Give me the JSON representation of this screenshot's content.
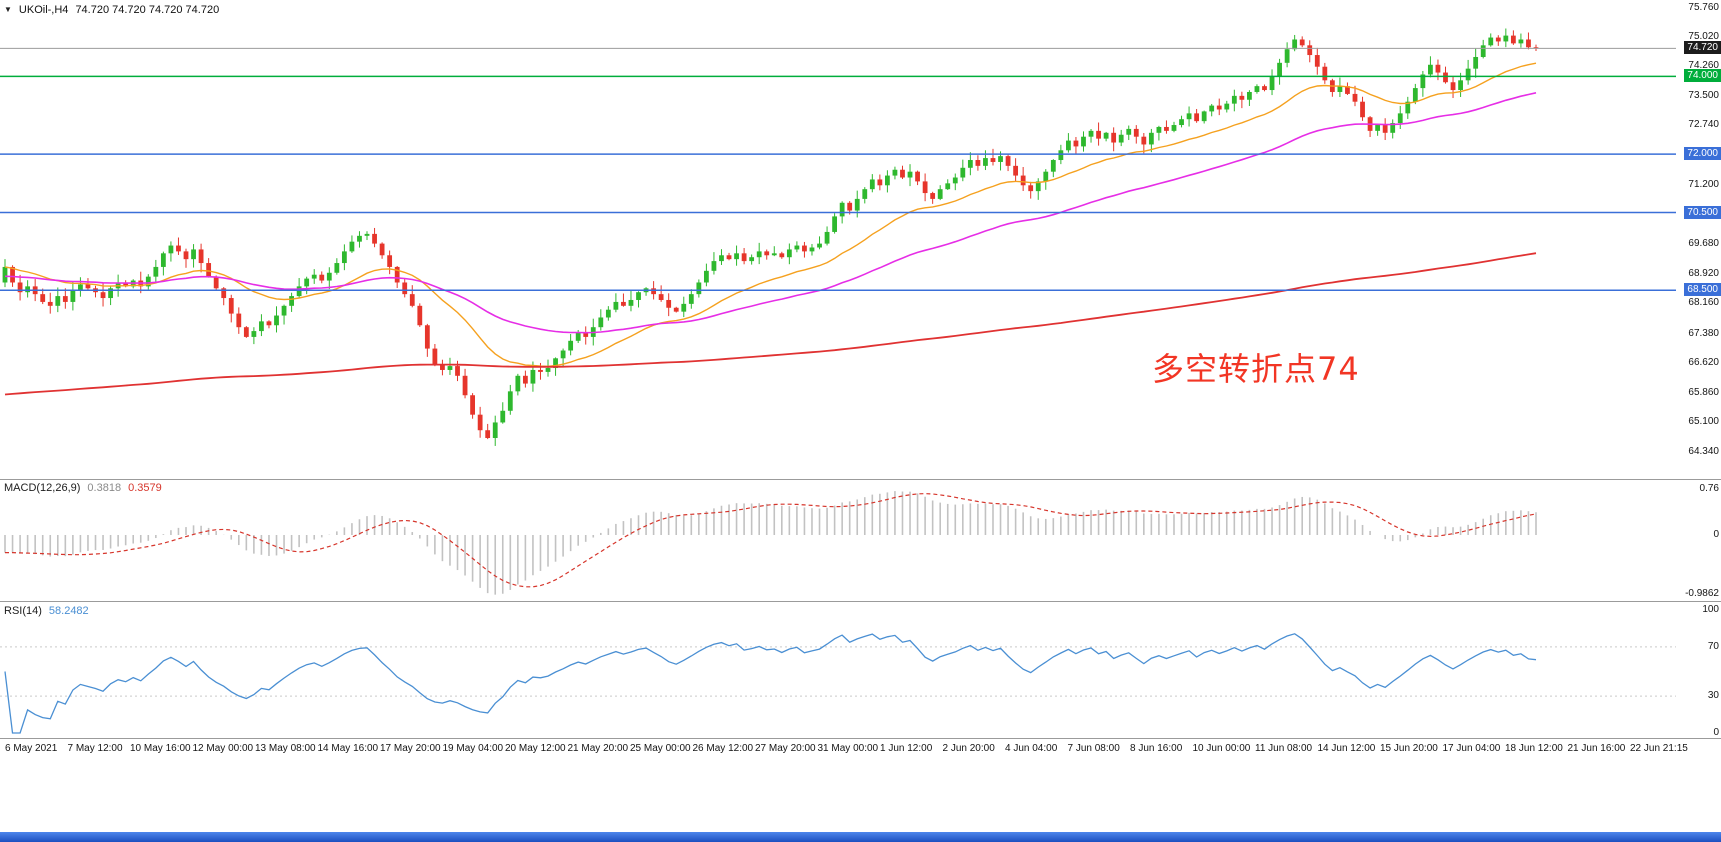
{
  "header": {
    "menu_icon": "▼",
    "symbol_timeframe": "UKOil-,H4",
    "ohlc_values": "74.720 74.720 74.720 74.720"
  },
  "colors": {
    "bull": "#2eb82e",
    "bear": "#e6352b",
    "separator": "#9b9b9b",
    "current_price_line": "#9c9c9c",
    "annotation_red": "#f23524",
    "taskbar_blue": "#2b62d9",
    "level_dash": "#c9c9c9"
  },
  "chart_data": {
    "type": "candlestick",
    "title": "UKOil-,H4",
    "timeframe": "H4",
    "ylim": [
      64.34,
      75.76
    ],
    "closes": [
      69.1,
      68.7,
      68.45,
      68.6,
      68.4,
      68.2,
      68.1,
      68.35,
      68.2,
      68.5,
      68.65,
      68.55,
      68.45,
      68.3,
      68.55,
      68.7,
      68.6,
      68.75,
      68.6,
      68.85,
      69.1,
      69.45,
      69.65,
      69.5,
      69.3,
      69.55,
      69.2,
      68.85,
      68.55,
      68.3,
      67.9,
      67.55,
      67.3,
      67.45,
      67.7,
      67.6,
      67.85,
      68.1,
      68.35,
      68.6,
      68.8,
      68.9,
      68.75,
      68.95,
      69.2,
      69.5,
      69.75,
      69.9,
      69.95,
      69.7,
      69.4,
      69.1,
      68.7,
      68.4,
      68.1,
      67.6,
      67.0,
      66.6,
      66.45,
      66.55,
      66.3,
      65.8,
      65.3,
      64.9,
      64.7,
      65.1,
      65.4,
      65.9,
      66.3,
      66.1,
      66.45,
      66.4,
      66.5,
      66.75,
      66.95,
      67.2,
      67.4,
      67.3,
      67.55,
      67.8,
      68.0,
      68.2,
      68.1,
      68.25,
      68.45,
      68.55,
      68.4,
      68.25,
      68.05,
      67.95,
      68.15,
      68.4,
      68.7,
      69.0,
      69.25,
      69.4,
      69.3,
      69.45,
      69.25,
      69.35,
      69.5,
      69.4,
      69.45,
      69.35,
      69.55,
      69.65,
      69.5,
      69.6,
      69.7,
      70.0,
      70.4,
      70.75,
      70.55,
      70.85,
      71.1,
      71.35,
      71.2,
      71.45,
      71.6,
      71.4,
      71.55,
      71.3,
      71.0,
      70.85,
      71.1,
      71.25,
      71.4,
      71.65,
      71.85,
      71.7,
      71.9,
      71.8,
      71.95,
      71.7,
      71.45,
      71.2,
      71.05,
      71.3,
      71.55,
      71.85,
      72.1,
      72.35,
      72.2,
      72.45,
      72.6,
      72.4,
      72.55,
      72.3,
      72.5,
      72.65,
      72.45,
      72.25,
      72.55,
      72.7,
      72.6,
      72.75,
      72.9,
      73.05,
      72.85,
      73.1,
      73.25,
      73.15,
      73.3,
      73.5,
      73.4,
      73.6,
      73.75,
      73.65,
      74.0,
      74.35,
      74.7,
      74.95,
      74.8,
      74.55,
      74.25,
      73.9,
      73.6,
      73.75,
      73.55,
      73.35,
      72.95,
      72.6,
      72.75,
      72.55,
      72.8,
      73.05,
      73.35,
      73.7,
      74.05,
      74.3,
      74.1,
      73.85,
      73.65,
      73.9,
      74.2,
      74.5,
      74.8,
      75.0,
      74.9,
      75.05,
      74.85,
      74.95,
      74.75,
      74.72
    ],
    "y_ticks": [
      {
        "label": "75.760",
        "value": 75.76
      },
      {
        "label": "75.020",
        "value": 75.02
      },
      {
        "label": "74.260",
        "value": 74.26
      },
      {
        "label": "73.500",
        "value": 73.5
      },
      {
        "label": "72.740",
        "value": 72.74
      },
      {
        "label": "71.200",
        "value": 71.2
      },
      {
        "label": "69.680",
        "value": 69.68
      },
      {
        "label": "68.920",
        "value": 68.92
      },
      {
        "label": "68.160",
        "value": 68.16
      },
      {
        "label": "67.380",
        "value": 67.38
      },
      {
        "label": "66.620",
        "value": 66.62
      },
      {
        "label": "65.860",
        "value": 65.86
      },
      {
        "label": "65.100",
        "value": 65.1
      },
      {
        "label": "64.340",
        "value": 64.34
      }
    ],
    "price_badges": [
      {
        "label": "74.720",
        "value": 74.72,
        "bg": "#1c1c1c"
      },
      {
        "label": "74.000",
        "value": 74.0,
        "bg": "#00ad3b"
      },
      {
        "label": "72.000",
        "value": 72.0,
        "bg": "#3a6fd8"
      },
      {
        "label": "70.500",
        "value": 70.5,
        "bg": "#3a6fd8"
      },
      {
        "label": "68.500",
        "value": 68.5,
        "bg": "#3a6fd8"
      }
    ],
    "hlines": [
      {
        "value": 74.0,
        "color": "#00ad3b"
      },
      {
        "value": 72.0,
        "color": "#3a6fd8"
      },
      {
        "value": 70.5,
        "color": "#3a6fd8"
      },
      {
        "value": 68.5,
        "color": "#3a6fd8"
      }
    ],
    "current_price": {
      "value": 74.72,
      "label": "74.720"
    },
    "overlays": [
      {
        "name": "ma-fast",
        "period": 21,
        "color": "#f5a11f",
        "width": 1.4
      },
      {
        "name": "ma-mid",
        "period": 55,
        "seed": 68.85,
        "color": "#e62ee6",
        "width": 1.6
      },
      {
        "name": "ma-slow",
        "period": 350,
        "seed": 65.8,
        "color": "#e03232",
        "width": 1.8
      }
    ],
    "annotation": {
      "text": "多空转折点74"
    },
    "indicators": {
      "macd": {
        "label": "MACD(12,26,9)",
        "value_main": "0.3818",
        "value_signal": "0.3579",
        "params": [
          12,
          26,
          9
        ],
        "ylim": [
          -1.05,
          0.85
        ],
        "y_ticks": [
          {
            "label": "0.76",
            "value": 0.76
          },
          {
            "label": "0",
            "value": 0
          },
          {
            "label": "-0.9862",
            "value": -0.9862
          }
        ],
        "hist_color": "#c2c2c2",
        "signal_color": "#d6352b"
      },
      "rsi": {
        "label": "RSI(14)",
        "value": "58.2482",
        "period": 14,
        "ylim": [
          0,
          100
        ],
        "levels": [
          70,
          30
        ],
        "y_ticks": [
          {
            "label": "100",
            "value": 100
          },
          {
            "label": "70",
            "value": 70
          },
          {
            "label": "30",
            "value": 30
          },
          {
            "label": "0",
            "value": 0
          }
        ],
        "line_color": "#4a8fd3"
      }
    },
    "x_labels": [
      "6 May 2021",
      "7 May 12:00",
      "10 May 16:00",
      "12 May 00:00",
      "13 May 08:00",
      "14 May 16:00",
      "17 May 20:00",
      "19 May 04:00",
      "20 May 12:00",
      "21 May 20:00",
      "25 May 00:00",
      "26 May 12:00",
      "27 May 20:00",
      "31 May 00:00",
      "1 Jun 12:00",
      "2 Jun 20:00",
      "4 Jun 04:00",
      "7 Jun 08:00",
      "8 Jun 16:00",
      "10 Jun 00:00",
      "11 Jun 08:00",
      "14 Jun 12:00",
      "15 Jun 20:00",
      "17 Jun 04:00",
      "18 Jun 12:00",
      "21 Jun 16:00",
      "22 Jun 21:15"
    ]
  }
}
